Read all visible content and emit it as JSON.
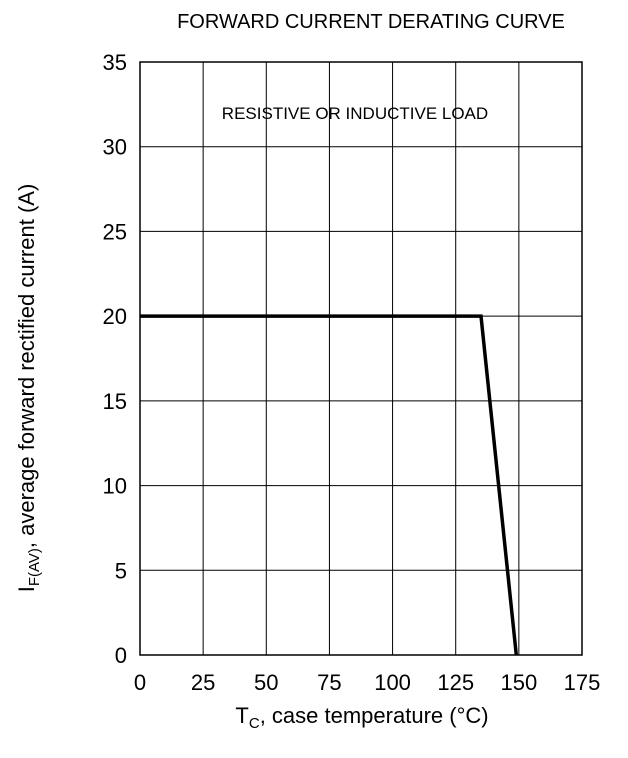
{
  "chart_data": {
    "type": "line",
    "title": "FORWARD CURRENT DERATING CURVE",
    "xlabel_main": "T",
    "xlabel_sub": "C",
    "xlabel_rest": ", case temperature (°C)",
    "ylabel_main": "I",
    "ylabel_sub": "F(AV)",
    "ylabel_rest": ",  average forward rectified current (A)",
    "annotation": "RESISTIVE OR INDUCTIVE LOAD",
    "xlim": [
      0,
      175
    ],
    "ylim": [
      0,
      35
    ],
    "x_ticks": [
      "0",
      "25",
      "50",
      "75",
      "100",
      "125",
      "150",
      "175"
    ],
    "y_ticks": [
      "0",
      "5",
      "10",
      "15",
      "20",
      "25",
      "30",
      "35"
    ],
    "grid": true,
    "series": [
      {
        "x": [
          0,
          135,
          149
        ],
        "y": [
          20,
          20,
          0
        ]
      }
    ]
  }
}
